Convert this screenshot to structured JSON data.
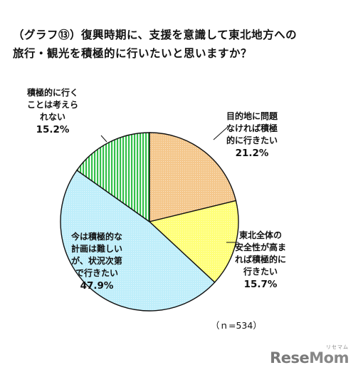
{
  "title": {
    "line1": "（グラフ⑬）復興時期に、支援を意識して東北地方への",
    "line2": "旅行・観光を積極的に行いたいと思いますか？"
  },
  "chart_data": {
    "type": "pie",
    "title": "（グラフ⑬）復興時期に、支援を意識して東北地方への旅行・観光を積極的に行いたいと思いますか？",
    "slices": [
      {
        "label_lines": [
          "目的地に問題",
          "なければ積極",
          "的に行きたい"
        ],
        "value": 21.2,
        "value_label": "21.2%",
        "color": "#f4c78c",
        "pattern": "dots"
      },
      {
        "label_lines": [
          "東北全体の",
          "安全性が高ま",
          "れば積極的に",
          "行きたい"
        ],
        "value": 15.7,
        "value_label": "15.7%",
        "color": "#ffff7a",
        "pattern": "dots"
      },
      {
        "label_lines": [
          "今は積極的な",
          "計画は難しい",
          "が、状況次第",
          "で行きたい"
        ],
        "value": 47.9,
        "value_label": "47.9%",
        "color": "#bfeefa",
        "pattern": "dots"
      },
      {
        "label_lines": [
          "積極的に行く",
          "ことは考えら",
          "れない"
        ],
        "value": 15.2,
        "value_label": "15.2%",
        "color": "#33c04a",
        "pattern": "vertical-stripes"
      }
    ],
    "start_angle_deg": 0,
    "direction": "clockwise",
    "sample_note": "（ｎ=534）"
  },
  "logo": {
    "text_a": "Rese",
    "text_b": "Mom",
    "sub": "リセマム"
  }
}
